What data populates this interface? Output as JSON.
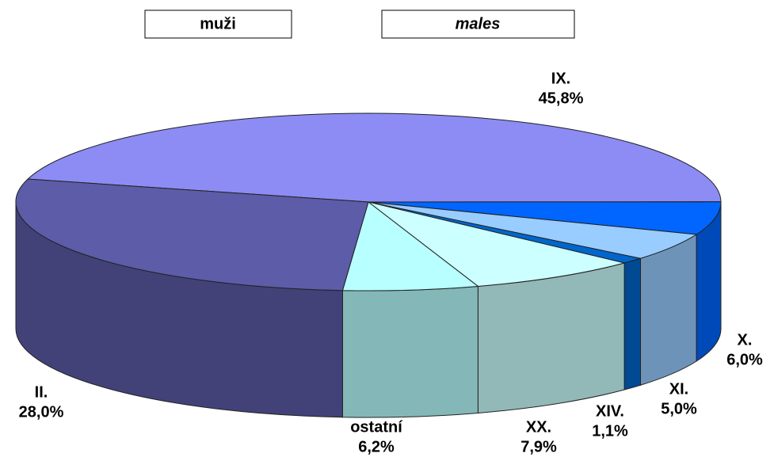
{
  "chart_data": {
    "type": "pie3d",
    "title": "muži",
    "subtitle": "males",
    "categories": [
      "IX.",
      "X.",
      "XI.",
      "XIV.",
      "XX.",
      "ostatní",
      "II."
    ],
    "values": [
      45.8,
      6.0,
      5.0,
      1.1,
      7.9,
      6.2,
      28.0
    ],
    "value_labels": [
      "45,8%",
      "6,0%",
      "5,0%",
      "1,1%",
      "7,9%",
      "6,2%",
      "28,0%"
    ],
    "colors": [
      "#8c8cf4",
      "#0066ff",
      "#99ccff",
      "#0066cc",
      "#ccffff",
      "#b8ffff",
      "#5c5ca8"
    ]
  }
}
